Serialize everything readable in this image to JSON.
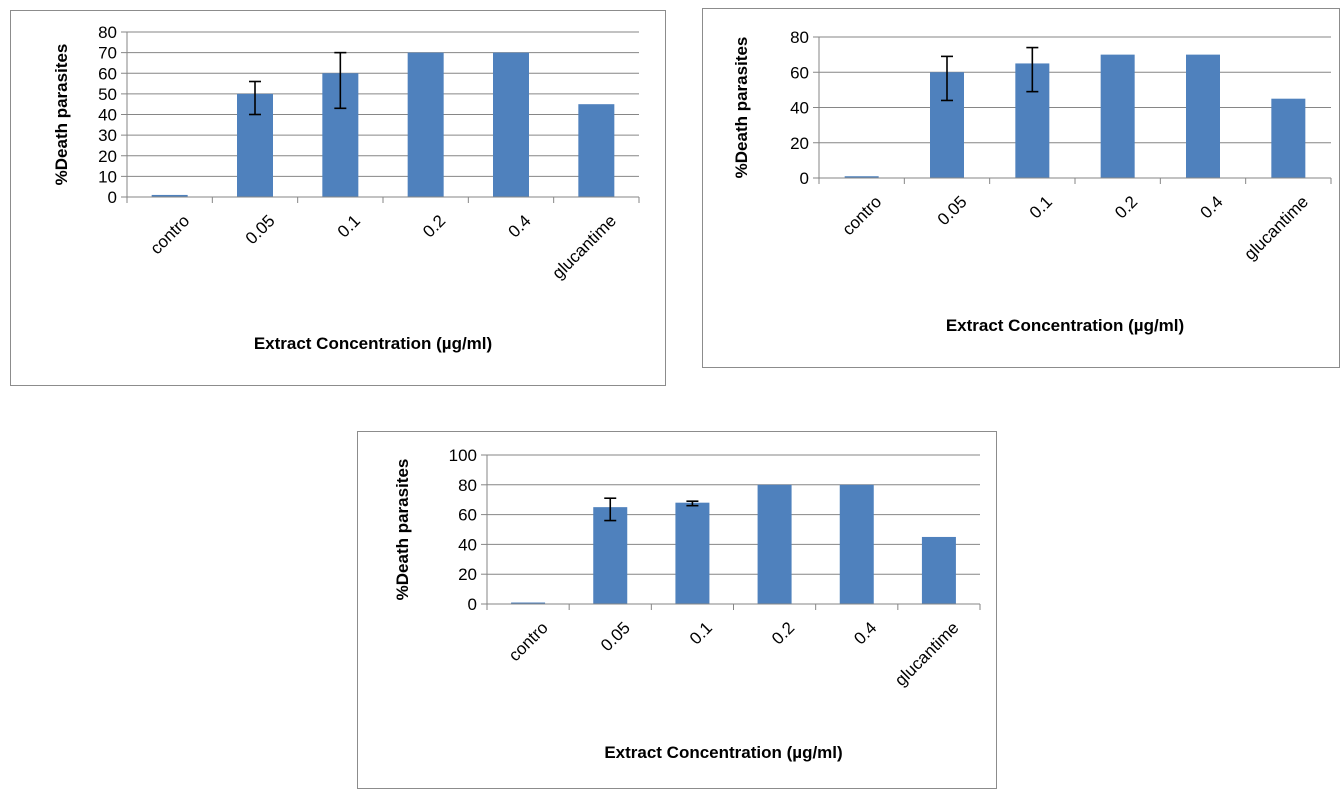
{
  "colors": {
    "bar": "#4f81bd",
    "gridline": "#868686",
    "axis": "#868686",
    "error_bar": "#000000"
  },
  "chart_data": [
    {
      "type": "bar",
      "title": "",
      "xlabel": "Extract Concentration (µg/ml)",
      "ylabel": "%Death parasites",
      "categories": [
        "contro",
        "0.05",
        "0.1",
        "0.2",
        "0.4",
        "glucantime"
      ],
      "values": [
        1,
        50,
        60,
        70,
        70,
        45
      ],
      "error_bars": [
        null,
        [
          40,
          56
        ],
        [
          43,
          70
        ],
        null,
        null,
        null
      ],
      "ylim": [
        0,
        80
      ],
      "yticks": [
        0,
        10,
        20,
        30,
        40,
        50,
        60,
        70,
        80
      ],
      "grid": true,
      "legend": "none"
    },
    {
      "type": "bar",
      "title": "",
      "xlabel": "Extract Concentration (µg/ml)",
      "ylabel": "%Death parasites",
      "categories": [
        "contro",
        "0.05",
        "0.1",
        "0.2",
        "0.4",
        "glucantime"
      ],
      "values": [
        1,
        60,
        65,
        70,
        70,
        45
      ],
      "error_bars": [
        null,
        [
          44,
          69
        ],
        [
          49,
          74
        ],
        null,
        null,
        null
      ],
      "ylim": [
        0,
        80
      ],
      "yticks": [
        0,
        20,
        40,
        60,
        80
      ],
      "grid": true,
      "legend": "none"
    },
    {
      "type": "bar",
      "title": "",
      "xlabel": "Extract Concentration (µg/ml)",
      "ylabel": "%Death parasites",
      "categories": [
        "contro",
        "0.05",
        "0.1",
        "0.2",
        "0.4",
        "glucantime"
      ],
      "values": [
        1,
        65,
        68,
        80,
        80,
        45
      ],
      "error_bars": [
        null,
        [
          56,
          71
        ],
        [
          66,
          69
        ],
        null,
        null,
        null
      ],
      "ylim": [
        0,
        100
      ],
      "yticks": [
        0,
        20,
        40,
        60,
        80,
        100
      ],
      "grid": true,
      "legend": "none"
    }
  ]
}
